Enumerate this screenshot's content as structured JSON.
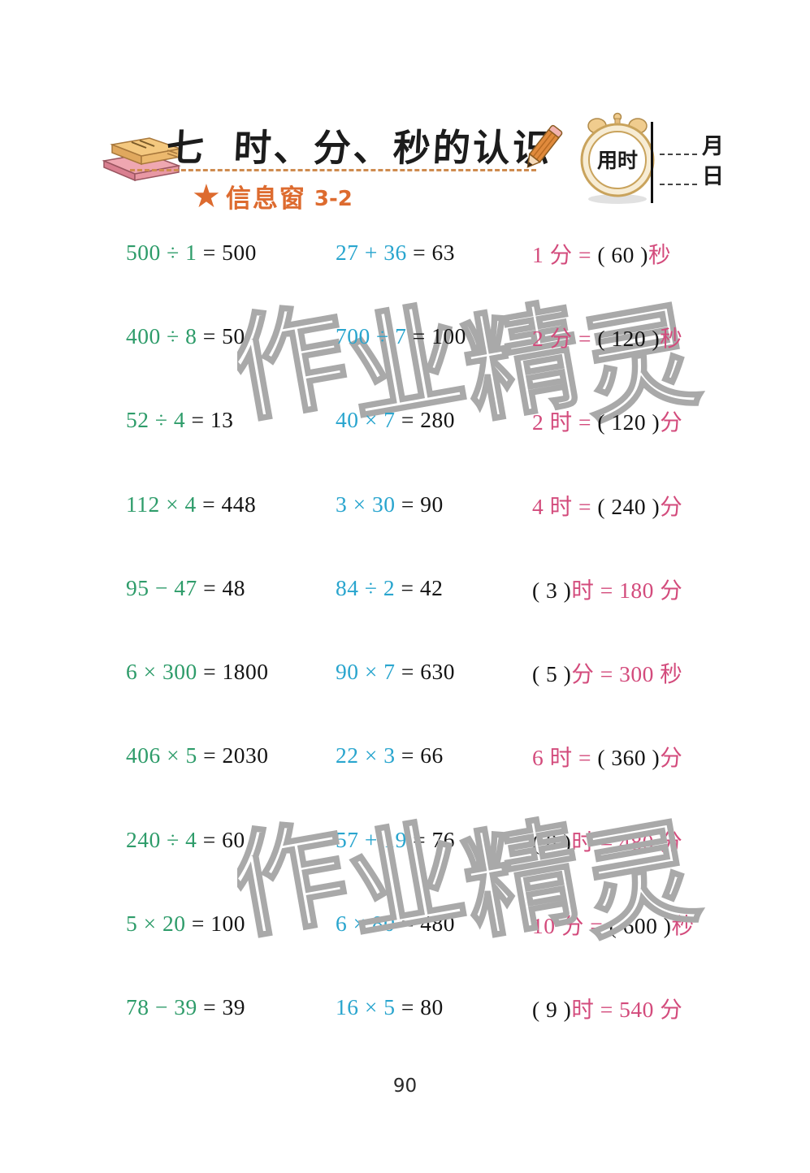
{
  "header": {
    "unit_number": "七",
    "title": "时、分、秒的认识",
    "timer_label": "用时",
    "month_label": "月",
    "day_label": "日",
    "section_label": "信息窗",
    "section_number": "3-2",
    "star_glyph": "★"
  },
  "colors": {
    "green": "#2e9c6a",
    "cyan": "#29a5ce",
    "pink": "#d34b7c",
    "orange": "#dd6b2f",
    "watermark": "#a9a9a9"
  },
  "watermark_text": "作业精灵",
  "page_number": "90",
  "problems": [
    [
      [
        {
          "t": "500 ÷ 1 ",
          "c": "green"
        },
        {
          "t": "= 500",
          "c": "black"
        }
      ],
      [
        {
          "t": "27 + 36 ",
          "c": "cyan"
        },
        {
          "t": "= 63",
          "c": "black"
        }
      ],
      [
        {
          "t": "1 分 = ",
          "c": "pink"
        },
        {
          "t": "(  60  )",
          "c": "black"
        },
        {
          "t": "秒",
          "c": "pink"
        }
      ]
    ],
    [
      [
        {
          "t": "400 ÷ 8 ",
          "c": "green"
        },
        {
          "t": "= 50",
          "c": "black"
        }
      ],
      [
        {
          "t": "700 ÷ 7 ",
          "c": "cyan"
        },
        {
          "t": "= 100",
          "c": "black"
        }
      ],
      [
        {
          "t": "2 分 = ",
          "c": "pink"
        },
        {
          "t": "( 120 )",
          "c": "black"
        },
        {
          "t": "秒",
          "c": "pink"
        }
      ]
    ],
    [
      [
        {
          "t": "52 ÷ 4 ",
          "c": "green"
        },
        {
          "t": "= 13",
          "c": "black"
        }
      ],
      [
        {
          "t": "40 × 7 ",
          "c": "cyan"
        },
        {
          "t": "= 280",
          "c": "black"
        }
      ],
      [
        {
          "t": "2 时 = ",
          "c": "pink"
        },
        {
          "t": "( 120 )",
          "c": "black"
        },
        {
          "t": "分",
          "c": "pink"
        }
      ]
    ],
    [
      [
        {
          "t": "112 × 4 ",
          "c": "green"
        },
        {
          "t": "= 448",
          "c": "black"
        }
      ],
      [
        {
          "t": "3 × 30 ",
          "c": "cyan"
        },
        {
          "t": "= 90",
          "c": "black"
        }
      ],
      [
        {
          "t": "4 时 = ",
          "c": "pink"
        },
        {
          "t": "( 240 )",
          "c": "black"
        },
        {
          "t": "分",
          "c": "pink"
        }
      ]
    ],
    [
      [
        {
          "t": "95 − 47 ",
          "c": "green"
        },
        {
          "t": "= 48",
          "c": "black"
        }
      ],
      [
        {
          "t": "84 ÷ 2 ",
          "c": "cyan"
        },
        {
          "t": "= 42",
          "c": "black"
        }
      ],
      [
        {
          "t": "(  3  )",
          "c": "black"
        },
        {
          "t": "时 = 180 分",
          "c": "pink"
        }
      ]
    ],
    [
      [
        {
          "t": "6 × 300 ",
          "c": "green"
        },
        {
          "t": "= 1800",
          "c": "black"
        }
      ],
      [
        {
          "t": "90 × 7 ",
          "c": "cyan"
        },
        {
          "t": "= 630",
          "c": "black"
        }
      ],
      [
        {
          "t": "(  5  )",
          "c": "black"
        },
        {
          "t": "分 = 300 秒",
          "c": "pink"
        }
      ]
    ],
    [
      [
        {
          "t": "406 × 5 ",
          "c": "green"
        },
        {
          "t": "= 2030",
          "c": "black"
        }
      ],
      [
        {
          "t": "22 × 3 ",
          "c": "cyan"
        },
        {
          "t": "= 66",
          "c": "black"
        }
      ],
      [
        {
          "t": "6 时 = ",
          "c": "pink"
        },
        {
          "t": "( 360 )",
          "c": "black"
        },
        {
          "t": "分",
          "c": "pink"
        }
      ]
    ],
    [
      [
        {
          "t": "240 ÷ 4 ",
          "c": "green"
        },
        {
          "t": "= 60",
          "c": "black"
        }
      ],
      [
        {
          "t": "57 + 19 ",
          "c": "cyan"
        },
        {
          "t": "= 76",
          "c": "black"
        }
      ],
      [
        {
          "t": "(  8  )",
          "c": "black"
        },
        {
          "t": "时 = 480 分",
          "c": "pink"
        }
      ]
    ],
    [
      [
        {
          "t": "5 × 20 ",
          "c": "green"
        },
        {
          "t": "= 100",
          "c": "black"
        }
      ],
      [
        {
          "t": "6 × 80 ",
          "c": "cyan"
        },
        {
          "t": "= 480",
          "c": "black"
        }
      ],
      [
        {
          "t": "10 分 = ",
          "c": "pink"
        },
        {
          "t": "( 600 )",
          "c": "black"
        },
        {
          "t": "秒",
          "c": "pink"
        }
      ]
    ],
    [
      [
        {
          "t": "78 − 39 ",
          "c": "green"
        },
        {
          "t": "= 39",
          "c": "black"
        }
      ],
      [
        {
          "t": "16 × 5 ",
          "c": "cyan"
        },
        {
          "t": "= 80",
          "c": "black"
        }
      ],
      [
        {
          "t": "(  9  )",
          "c": "black"
        },
        {
          "t": "时 = 540 分",
          "c": "pink"
        }
      ]
    ]
  ]
}
